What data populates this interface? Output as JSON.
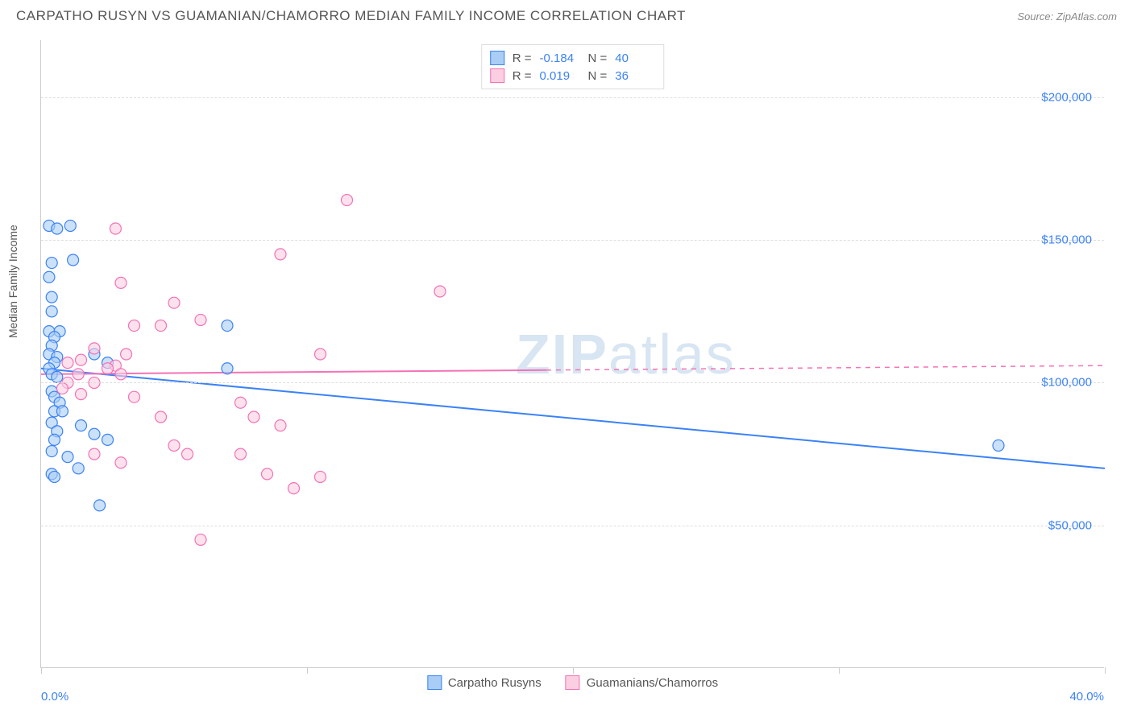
{
  "header": {
    "title": "CARPATHO RUSYN VS GUAMANIAN/CHAMORRO MEDIAN FAMILY INCOME CORRELATION CHART",
    "source": "Source: ZipAtlas.com"
  },
  "chart": {
    "type": "scatter",
    "y_axis_label": "Median Family Income",
    "xlim": [
      0,
      40
    ],
    "ylim": [
      0,
      220000
    ],
    "x_tick_labels": {
      "min": "0.0%",
      "max": "40.0%"
    },
    "x_tick_positions_pct": [
      0,
      25,
      50,
      75,
      100
    ],
    "y_gridlines": [
      50000,
      100000,
      150000,
      200000
    ],
    "y_tick_labels": [
      "$50,000",
      "$100,000",
      "$150,000",
      "$200,000"
    ],
    "grid_color": "#dddddd",
    "axis_color": "#cccccc",
    "tick_label_color": "#3b82f6",
    "background_color": "#ffffff",
    "marker_radius": 7,
    "marker_stroke_width": 1.2,
    "marker_fill_opacity": 0.25,
    "trend_line_width": 2,
    "series": [
      {
        "name": "Carpatho Rusyns",
        "color_stroke": "#3b82f6",
        "color_fill": "#a9cdf4",
        "trend": {
          "x1": 0,
          "y1": 105000,
          "x2": 40,
          "y2": 70000,
          "solid_until_x": 40
        },
        "points": [
          [
            0.3,
            155000
          ],
          [
            0.6,
            154000
          ],
          [
            1.1,
            155000
          ],
          [
            0.4,
            142000
          ],
          [
            1.2,
            143000
          ],
          [
            0.3,
            137000
          ],
          [
            0.4,
            130000
          ],
          [
            0.4,
            125000
          ],
          [
            0.3,
            118000
          ],
          [
            0.7,
            118000
          ],
          [
            0.5,
            116000
          ],
          [
            0.4,
            113000
          ],
          [
            0.3,
            110000
          ],
          [
            0.6,
            109000
          ],
          [
            0.5,
            107000
          ],
          [
            0.3,
            105000
          ],
          [
            0.4,
            103000
          ],
          [
            0.6,
            102000
          ],
          [
            7.0,
            120000
          ],
          [
            7.0,
            105000
          ],
          [
            2.0,
            110000
          ],
          [
            2.5,
            107000
          ],
          [
            0.4,
            97000
          ],
          [
            0.5,
            95000
          ],
          [
            0.7,
            93000
          ],
          [
            0.5,
            90000
          ],
          [
            0.8,
            90000
          ],
          [
            0.4,
            86000
          ],
          [
            1.5,
            85000
          ],
          [
            0.6,
            83000
          ],
          [
            0.5,
            80000
          ],
          [
            2.0,
            82000
          ],
          [
            2.5,
            80000
          ],
          [
            0.4,
            76000
          ],
          [
            1.0,
            74000
          ],
          [
            1.4,
            70000
          ],
          [
            0.4,
            68000
          ],
          [
            0.5,
            67000
          ],
          [
            2.2,
            57000
          ],
          [
            36.0,
            78000
          ]
        ]
      },
      {
        "name": "Guamanians/Chamorros",
        "color_stroke": "#f472b6",
        "color_fill": "#fbcfe1",
        "trend": {
          "x1": 0,
          "y1": 103000,
          "x2": 40,
          "y2": 106000,
          "solid_until_x": 19
        },
        "points": [
          [
            11.5,
            164000
          ],
          [
            2.8,
            154000
          ],
          [
            9.0,
            145000
          ],
          [
            3.0,
            135000
          ],
          [
            15.0,
            132000
          ],
          [
            5.0,
            128000
          ],
          [
            6.0,
            122000
          ],
          [
            4.5,
            120000
          ],
          [
            3.5,
            120000
          ],
          [
            10.5,
            110000
          ],
          [
            2.0,
            112000
          ],
          [
            3.2,
            110000
          ],
          [
            1.5,
            108000
          ],
          [
            2.8,
            106000
          ],
          [
            1.0,
            107000
          ],
          [
            1.4,
            103000
          ],
          [
            2.5,
            105000
          ],
          [
            3.0,
            103000
          ],
          [
            1.0,
            100000
          ],
          [
            2.0,
            100000
          ],
          [
            0.8,
            98000
          ],
          [
            1.5,
            96000
          ],
          [
            3.5,
            95000
          ],
          [
            7.5,
            93000
          ],
          [
            4.5,
            88000
          ],
          [
            8.0,
            88000
          ],
          [
            9.0,
            85000
          ],
          [
            7.5,
            75000
          ],
          [
            5.0,
            78000
          ],
          [
            5.5,
            75000
          ],
          [
            8.5,
            68000
          ],
          [
            10.5,
            67000
          ],
          [
            9.5,
            63000
          ],
          [
            3.0,
            72000
          ],
          [
            2.0,
            75000
          ],
          [
            6.0,
            45000
          ]
        ]
      }
    ],
    "stats_box": {
      "rows": [
        {
          "color_stroke": "#3b82f6",
          "color_fill": "#a9cdf4",
          "r_label": "R =",
          "r": "-0.184",
          "n_label": "N =",
          "n": "40"
        },
        {
          "color_stroke": "#f472b6",
          "color_fill": "#fbcfe1",
          "r_label": "R =",
          "r": "0.019",
          "n_label": "N =",
          "n": "36"
        }
      ]
    },
    "bottom_legend": [
      {
        "label": "Carpatho Rusyns",
        "color_stroke": "#3b82f6",
        "color_fill": "#a9cdf4"
      },
      {
        "label": "Guamanians/Chamorros",
        "color_stroke": "#f472b6",
        "color_fill": "#fbcfe1"
      }
    ],
    "watermark": {
      "zip": "ZIP",
      "atlas": "atlas"
    }
  }
}
